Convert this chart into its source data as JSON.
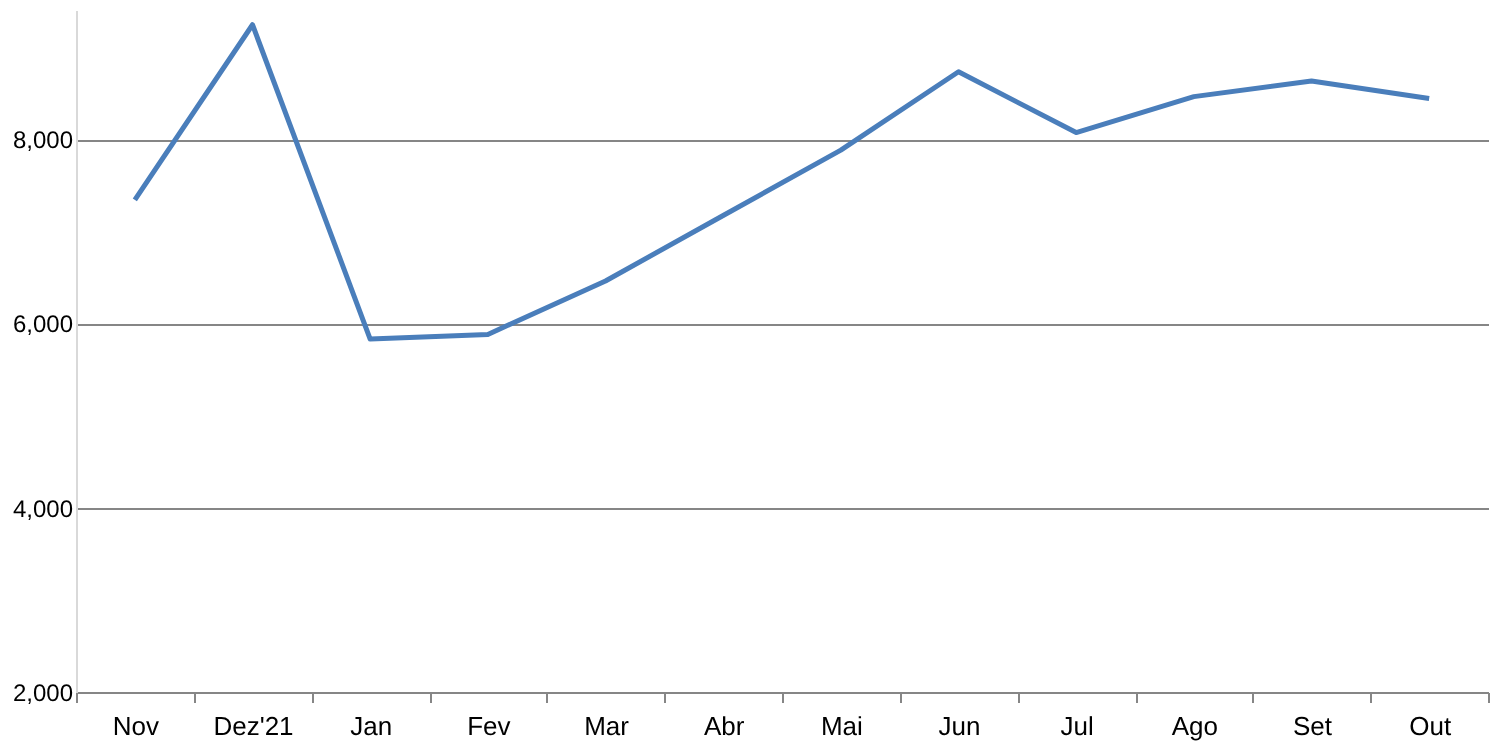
{
  "chart_data": {
    "type": "line",
    "categories": [
      "Nov",
      "Dez'21",
      "Jan",
      "Fev",
      "Mar",
      "Abr",
      "Mai",
      "Jun",
      "Jul",
      "Ago",
      "Set",
      "Out"
    ],
    "series": [
      {
        "color": "#4a7ebb",
        "values": [
          7340,
          9240,
          5830,
          5880,
          6460,
          7170,
          7880,
          8730,
          8070,
          8460,
          8630,
          8440
        ]
      }
    ],
    "ylim": [
      2000,
      9400
    ],
    "yticks": [
      {
        "value": 2000,
        "label": "2,000"
      },
      {
        "value": 4000,
        "label": "4,000"
      },
      {
        "value": 6000,
        "label": "6,000"
      },
      {
        "value": 8000,
        "label": "8,000"
      }
    ],
    "grid": "y",
    "marker": "none",
    "line_style": "solid"
  }
}
